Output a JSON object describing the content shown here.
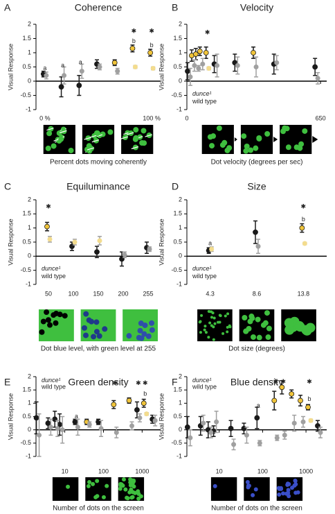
{
  "chart_data": [
    {
      "type": "errorpoints",
      "panel": "A",
      "title": "Coherence",
      "ylabel": "Visual Response",
      "xlabel": "Percent dots moving coherently",
      "categories": [
        "0 %",
        null,
        null,
        null,
        null,
        null,
        "100 %"
      ],
      "ylim": [
        -1,
        2
      ],
      "yticks": [
        -1,
        -0.5,
        0,
        0.5,
        1,
        1.5,
        2
      ],
      "series": [
        {
          "color": "#1a1a1a",
          "colors": [
            "#1a1a1a",
            "#1a1a1a",
            "#1a1a1a",
            "#1a1a1a",
            "#f0c43a",
            "#f0c43a",
            "#f0c43a"
          ],
          "values": [
            0.25,
            -0.2,
            -0.15,
            0.6,
            0.65,
            1.15,
            1.0
          ],
          "errors": [
            0.1,
            0.35,
            0.35,
            0.15,
            0.1,
            0.12,
            0.12
          ]
        },
        {
          "color": "#a0a0a0",
          "colors": [
            "#a0a0a0",
            "#a0a0a0",
            "#a0a0a0",
            "#a0a0a0",
            "#a0a0a0",
            "#f3dc8e",
            "#f3dc8e"
          ],
          "values": [
            0.2,
            0.2,
            0.35,
            0.5,
            0.35,
            0.5,
            0.45
          ],
          "errors": [
            0.12,
            0.3,
            0.25,
            0.1,
            0.1,
            0.05,
            0.05
          ]
        }
      ],
      "annotations": [
        {
          "text": "a",
          "x": 0,
          "y": 0.45,
          "color": "#777777"
        },
        {
          "text": "a",
          "x": 1,
          "y": 0.55,
          "color": "#777777"
        },
        {
          "text": "a",
          "x": 2,
          "y": 0.65,
          "color": "#777777"
        },
        {
          "text": "b",
          "x": 5,
          "y": 1.4,
          "color": "#777777"
        },
        {
          "text": "b",
          "x": 6,
          "y": 1.25,
          "color": "#777777"
        },
        {
          "text": "✱",
          "x": 5,
          "y": 1.75,
          "color": "#1f2a6b"
        },
        {
          "text": "✱",
          "x": 6,
          "y": 1.75,
          "color": "#1f2a6b"
        }
      ]
    },
    {
      "type": "errorpoints",
      "panel": "B",
      "title": "Velocity",
      "ylabel": "Visual Response",
      "xlabel": "Dot velocity (degrees per sec)",
      "x": [
        10,
        30,
        50,
        70,
        100,
        140,
        240,
        330,
        430,
        630
      ],
      "xlim": [
        0,
        680
      ],
      "xticks": [
        0,
        650
      ],
      "ylim": [
        -1,
        2
      ],
      "yticks": [
        -1,
        -0.5,
        0,
        0.5,
        1,
        1.5,
        2
      ],
      "legend": "lower left",
      "series": [
        {
          "name": "dunce¹",
          "color": "#1a1a1a",
          "colors": [
            "#1a1a1a",
            "#f0c43a",
            "#f0c43a",
            "#f0c43a",
            "#f0c43a",
            "#1a1a1a",
            "#1a1a1a",
            "#f0c43a",
            "#1a1a1a",
            "#1a1a1a"
          ],
          "values": [
            0.35,
            0.9,
            0.95,
            1.05,
            1.0,
            0.6,
            0.65,
            1.0,
            0.6,
            0.5
          ],
          "errors": [
            0.3,
            0.2,
            0.2,
            0.15,
            0.2,
            0.3,
            0.3,
            0.2,
            0.35,
            0.3
          ]
        },
        {
          "name": "wild type",
          "color": "#a0a0a0",
          "colors": [
            "#a0a0a0",
            "#a0a0a0",
            "#a0a0a0",
            "#a0a0a0",
            "#f3dc8e",
            "#a0a0a0",
            "#a0a0a0",
            "#a0a0a0",
            "#a0a0a0",
            "#a0a0a0"
          ],
          "values": [
            0.15,
            0.55,
            0.45,
            0.6,
            0.45,
            0.55,
            0.55,
            0.5,
            0.65,
            0.1
          ],
          "errors": [
            0.3,
            0.2,
            0.1,
            0.2,
            0.05,
            0.4,
            0.3,
            0.35,
            0.25,
            0.2
          ]
        }
      ],
      "annotations": [
        {
          "text": "✱",
          "x": 100,
          "y": 1.7,
          "color": "#1f2a6b"
        }
      ]
    },
    {
      "type": "errorpoints",
      "panel": "C",
      "title": "Equiluminance",
      "ylabel": "Visual Response",
      "xlabel": "Dot blue level, with green level at 255",
      "categories": [
        "50",
        "100",
        "150",
        "200",
        "255"
      ],
      "ylim": [
        -1,
        2
      ],
      "yticks": [
        -1,
        -0.5,
        0,
        0.5,
        1,
        1.5,
        2
      ],
      "legend": "lower left",
      "series": [
        {
          "name": "dunce¹",
          "color": "#1a1a1a",
          "colors": [
            "#f0c43a",
            "#1a1a1a",
            "#1a1a1a",
            "#1a1a1a",
            "#1a1a1a"
          ],
          "values": [
            1.05,
            0.35,
            0.15,
            -0.1,
            0.3
          ],
          "errors": [
            0.15,
            0.15,
            0.2,
            0.25,
            0.2
          ]
        },
        {
          "name": "wild type",
          "color": "#a0a0a0",
          "colors": [
            "#f3dc8e",
            "#f3dc8e",
            "#f3dc8e",
            "#a0a0a0",
            "#a0a0a0"
          ],
          "values": [
            0.6,
            0.5,
            0.55,
            0.05,
            0.25
          ],
          "errors": [
            0.1,
            0.1,
            0.15,
            0.1,
            0.08
          ]
        }
      ],
      "annotations": [
        {
          "text": "✱",
          "x": 0,
          "y": 1.75,
          "color": "#1f2a6b"
        }
      ]
    },
    {
      "type": "errorpoints",
      "panel": "D",
      "title": "Size",
      "ylabel": "Visual Response",
      "xlabel": "Dot size (degrees)",
      "categories": [
        "4.3",
        "8.6",
        "13.8"
      ],
      "ylim": [
        -1,
        2
      ],
      "yticks": [
        -1,
        -0.5,
        0,
        0.5,
        1,
        1.5,
        2
      ],
      "legend": "lower left",
      "series": [
        {
          "name": "dunce¹",
          "color": "#1a1a1a",
          "colors": [
            "#1a1a1a",
            "#1a1a1a",
            "#f0c43a"
          ],
          "values": [
            0.2,
            0.85,
            1.0
          ],
          "errors": [
            0.1,
            0.4,
            0.15
          ]
        },
        {
          "name": "wild type",
          "color": "#a0a0a0",
          "colors": [
            "#f3dc8e",
            "#a0a0a0",
            "#f3dc8e"
          ],
          "values": [
            0.25,
            0.35,
            0.45
          ],
          "errors": [
            0.08,
            0.25,
            0.04
          ]
        }
      ],
      "annotations": [
        {
          "text": "a",
          "x": 0,
          "y": 0.45,
          "color": "#777777"
        },
        {
          "text": "b",
          "x": 2,
          "y": 1.3,
          "color": "#777777"
        },
        {
          "text": "✱",
          "x": 2,
          "y": 1.75,
          "color": "#1f2a6b"
        }
      ]
    },
    {
      "type": "errorpoints",
      "panel": "E",
      "title": "Green density",
      "ylabel": "Visual Response",
      "xlabel": "Number of dots on the screen",
      "x": [
        2,
        4,
        6,
        8,
        20,
        40,
        80,
        200,
        500,
        800,
        1200,
        2000
      ],
      "xscale": "log",
      "xlim": [
        1.8,
        3000
      ],
      "xticks": [
        10,
        100,
        1000
      ],
      "ylim": [
        -1,
        2
      ],
      "yticks": [
        -1,
        -0.5,
        0,
        0.5,
        1,
        1.5,
        2
      ],
      "legend": "upper left",
      "series": [
        {
          "name": "dunce¹",
          "color": "#1a1a1a",
          "colors": [
            "#1a1a1a",
            "#1a1a1a",
            "#1a1a1a",
            "#1a1a1a",
            "#1a1a1a",
            "#f0c43a",
            "#1a1a1a",
            "#f0c43a",
            "#f0c43a",
            "#1a1a1a",
            "#f0c43a",
            "#1a1a1a"
          ],
          "values": [
            0.45,
            0.25,
            0.4,
            0.2,
            0.3,
            0.3,
            0.3,
            0.95,
            1.1,
            0.75,
            1.0,
            0.4
          ],
          "errors": [
            0.6,
            0.2,
            0.3,
            0.4,
            0.1,
            0.1,
            0.1,
            0.15,
            0.1,
            0.3,
            0.15,
            0.15
          ]
        },
        {
          "name": "wild type",
          "color": "#a0a0a0",
          "colors": [
            "#a0a0a0",
            "#a0a0a0",
            "#a0a0a0",
            "#a0a0a0",
            "#a0a0a0",
            "#a0a0a0",
            "#a0a0a0",
            "#a0a0a0",
            "#a0a0a0",
            "#a0a0a0",
            "#f3dc8e",
            "#a0a0a0"
          ],
          "values": [
            -0.2,
            0.1,
            0.05,
            0.0,
            0.1,
            0.2,
            0.05,
            -0.1,
            0.15,
            0.45,
            0.6,
            0.35
          ],
          "errors": [
            0.8,
            0.3,
            0.3,
            0.5,
            0.3,
            0.1,
            0.3,
            0.2,
            0.15,
            0.15,
            0.05,
            0.2
          ]
        }
      ],
      "annotations": [
        {
          "text": "a",
          "x": 20,
          "y": 0.5,
          "color": "#777777"
        },
        {
          "text": "b",
          "x": 1200,
          "y": 1.35,
          "color": "#777777"
        },
        {
          "text": "✱",
          "x": 200,
          "y": 1.75,
          "color": "#1f2a6b"
        },
        {
          "text": "✱",
          "x": 800,
          "y": 1.75,
          "color": "#1f2a6b"
        },
        {
          "text": "✱",
          "x": 1200,
          "y": 1.75,
          "color": "#1f2a6b"
        }
      ]
    },
    {
      "type": "errorpoints",
      "panel": "F",
      "title": "Blue density",
      "ylabel": "Visual Response",
      "xlabel": "Number of dots on the screen",
      "x": [
        2,
        4,
        6,
        8,
        20,
        40,
        80,
        200,
        300,
        500,
        800,
        1200,
        2000
      ],
      "xscale": "log",
      "xlim": [
        1.8,
        3000
      ],
      "xticks": [
        10,
        100,
        1000
      ],
      "ylim": [
        -1,
        2
      ],
      "yticks": [
        -1,
        -0.5,
        0,
        0.5,
        1,
        1.5,
        2
      ],
      "legend": "upper left",
      "series": [
        {
          "name": "dunce¹",
          "color": "#1a1a1a",
          "colors": [
            "#1a1a1a",
            "#1a1a1a",
            "#1a1a1a",
            "#1a1a1a",
            "#1a1a1a",
            "#1a1a1a",
            "#1a1a1a",
            "#f0c43a",
            "#f0c43a",
            "#f0c43a",
            "#f0c43a",
            "#f0c43a",
            "#1a1a1a"
          ],
          "values": [
            0.1,
            0.15,
            0.0,
            -0.05,
            0.05,
            0.05,
            0.45,
            1.1,
            1.6,
            1.35,
            1.1,
            0.85,
            0.15
          ],
          "errors": [
            0.4,
            0.35,
            0.3,
            0.2,
            0.3,
            0.2,
            0.4,
            0.35,
            0.25,
            0.15,
            0.2,
            0.1,
            0.2
          ]
        },
        {
          "name": "wild type",
          "color": "#a0a0a0",
          "colors": [
            "#a0a0a0",
            "#a0a0a0",
            "#a0a0a0",
            "#a0a0a0",
            "#a0a0a0",
            "#a0a0a0",
            "#a0a0a0",
            "#a0a0a0",
            "#a0a0a0",
            "#a0a0a0",
            "#a0a0a0",
            "#f3dc8e",
            "#a0a0a0"
          ],
          "values": [
            -0.3,
            0.25,
            -0.1,
            0.3,
            -0.55,
            -0.2,
            -0.5,
            -0.3,
            -0.2,
            0.25,
            0.3,
            0.35,
            -0.1
          ],
          "errors": [
            0.3,
            0.3,
            0.2,
            0.4,
            0.2,
            0.3,
            0.1,
            0.1,
            0.15,
            0.3,
            0.2,
            0.05,
            0.2
          ]
        }
      ],
      "annotations": [
        {
          "text": "a",
          "x": 80,
          "y": 0.9,
          "color": "#999999"
        },
        {
          "text": "b",
          "x": 1200,
          "y": 1.15,
          "color": "#999999"
        },
        {
          "text": "✱",
          "x": 200,
          "y": 1.8,
          "color": "#1f2a6b"
        },
        {
          "text": "✱",
          "x": 300,
          "y": 1.8,
          "color": "#1f2a6b"
        },
        {
          "text": "✱",
          "x": 1200,
          "y": 1.8,
          "color": "#1f2a6b"
        }
      ]
    }
  ]
}
